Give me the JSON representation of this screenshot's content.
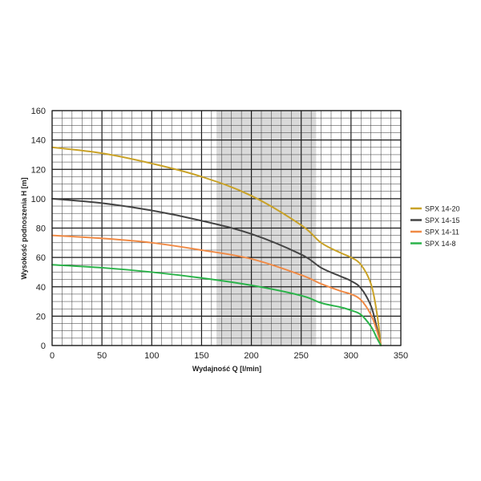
{
  "chart_data": {
    "type": "line",
    "xlabel": "Wydajność Q [l/min]",
    "ylabel": "Wysokość podnoszenia H [m]",
    "xlim": [
      0,
      350
    ],
    "ylim": [
      0,
      160
    ],
    "x_ticks": [
      0,
      50,
      100,
      150,
      200,
      250,
      300,
      350
    ],
    "y_ticks": [
      0,
      20,
      40,
      60,
      80,
      100,
      120,
      140,
      160
    ],
    "grid": true,
    "highlight_band": {
      "x_from": 165,
      "x_to": 265,
      "color": "#d9d9d9"
    },
    "legend_position": "right",
    "series": [
      {
        "name": "SPX 14-20",
        "color": "#c9a227",
        "x": [
          0,
          50,
          100,
          150,
          200,
          250,
          270,
          290,
          300,
          310,
          320,
          326,
          330
        ],
        "y": [
          135,
          131,
          124,
          115,
          102,
          82,
          70,
          63,
          60,
          55,
          42,
          22,
          0
        ]
      },
      {
        "name": "SPX 14-15",
        "color": "#444444",
        "x": [
          0,
          50,
          100,
          150,
          200,
          250,
          270,
          290,
          300,
          310,
          320,
          326,
          330
        ],
        "y": [
          100,
          97,
          92,
          85,
          76,
          62,
          53,
          47,
          44,
          39,
          27,
          12,
          0
        ]
      },
      {
        "name": "SPX 14-11",
        "color": "#f08a45",
        "x": [
          0,
          50,
          100,
          150,
          200,
          250,
          270,
          290,
          300,
          310,
          320,
          326,
          330
        ],
        "y": [
          75,
          73,
          70,
          65,
          59,
          48,
          42,
          37,
          35,
          31,
          21,
          10,
          0
        ]
      },
      {
        "name": "SPX 14-8",
        "color": "#2bb34a",
        "x": [
          0,
          50,
          100,
          150,
          200,
          250,
          270,
          290,
          300,
          310,
          320,
          326,
          330
        ],
        "y": [
          55,
          53,
          50,
          46,
          41,
          34,
          29,
          26,
          24,
          21,
          13,
          5,
          0
        ]
      }
    ]
  }
}
